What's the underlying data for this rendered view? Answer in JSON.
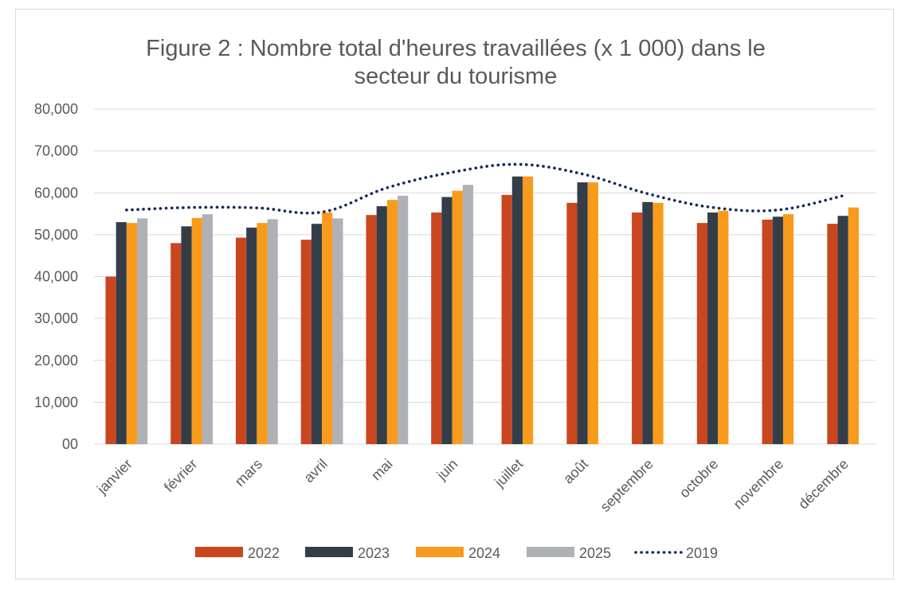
{
  "chart_data": {
    "type": "bar",
    "title_lines": [
      "Figure 2 : Nombre total d'heures travaillées (x 1 000) dans le",
      "secteur du tourisme"
    ],
    "categories": [
      "janvier",
      "février",
      "mars",
      "avril",
      "mai",
      "juin",
      "juillet",
      "août",
      "septembre",
      "octobre",
      "novembre",
      "décembre"
    ],
    "ylim": [
      0,
      80000
    ],
    "yticks": [
      {
        "value": 0,
        "label": "00"
      },
      {
        "value": 10000,
        "label": "10,000"
      },
      {
        "value": 20000,
        "label": "20,000"
      },
      {
        "value": 30000,
        "label": "30,000"
      },
      {
        "value": 40000,
        "label": "40,000"
      },
      {
        "value": 50000,
        "label": "50,000"
      },
      {
        "value": 60000,
        "label": "60,000"
      },
      {
        "value": 70000,
        "label": "70,000"
      },
      {
        "value": 80000,
        "label": "80,000"
      }
    ],
    "grid": true,
    "legend_position": "bottom",
    "series": [
      {
        "name": "2022",
        "kind": "bar",
        "color": "#c9461f",
        "values": [
          40000,
          48000,
          49300,
          48800,
          54700,
          55300,
          59500,
          57600,
          55300,
          52800,
          53600,
          52600
        ]
      },
      {
        "name": "2023",
        "kind": "bar",
        "color": "#343e48",
        "values": [
          53000,
          52000,
          51700,
          52600,
          56800,
          59000,
          63900,
          62500,
          57800,
          55300,
          54300,
          54500
        ]
      },
      {
        "name": "2024",
        "kind": "bar",
        "color": "#f89b1c",
        "values": [
          52800,
          54000,
          52800,
          55300,
          58300,
          60500,
          63900,
          62500,
          57600,
          55700,
          54900,
          56500
        ]
      },
      {
        "name": "2025",
        "kind": "bar",
        "color": "#aeb1b5",
        "values": [
          53900,
          54900,
          53700,
          53900,
          59300,
          61900,
          null,
          null,
          null,
          null,
          null,
          null
        ]
      },
      {
        "name": "2019",
        "kind": "line",
        "style": "dotted",
        "color": "#14285a",
        "values": [
          55900,
          56500,
          56400,
          55400,
          61200,
          64900,
          66800,
          64500,
          59800,
          56500,
          55900,
          59300
        ]
      }
    ]
  }
}
